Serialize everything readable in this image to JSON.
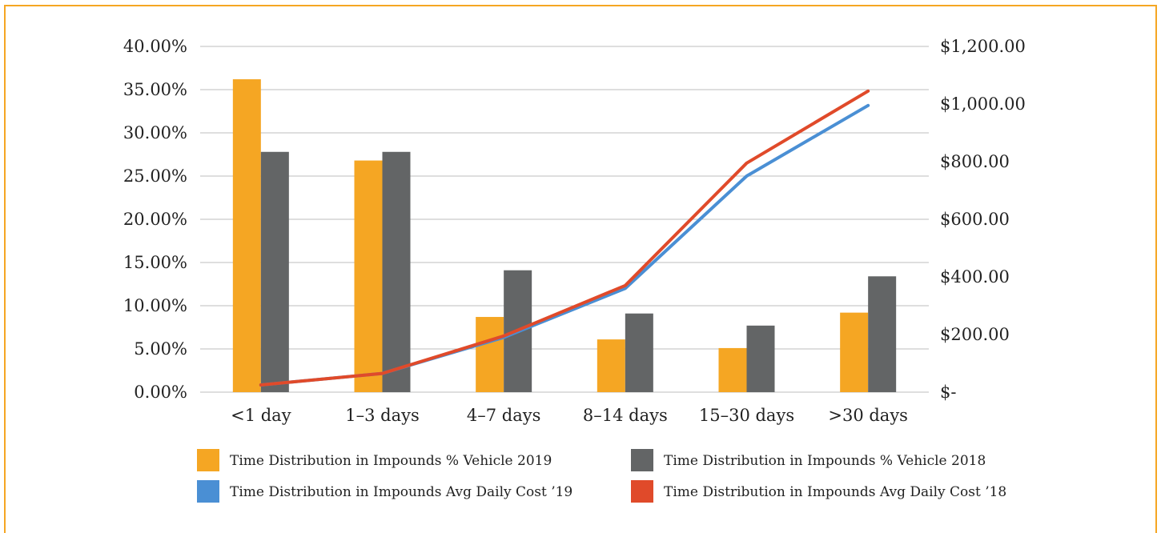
{
  "chart_data": {
    "type": "bar",
    "categories": [
      "<1 day",
      "1-3 days",
      "4-7 days",
      "8-14 days",
      "15-30 days",
      ">30 days"
    ],
    "series": [
      {
        "name": "Time Distribution in Impounds % Vehicle 2019",
        "kind": "bar",
        "axis": "left",
        "color": "#F5A623",
        "values": [
          36.2,
          26.8,
          8.7,
          6.1,
          5.1,
          9.2
        ]
      },
      {
        "name": "Time Distribution in Impounds % Vehicle 2018",
        "kind": "bar",
        "axis": "left",
        "color": "#636566",
        "values": [
          27.8,
          27.8,
          14.1,
          9.1,
          7.7,
          13.4
        ]
      },
      {
        "name": "Time Distribution in Impounds Avg Daily Cost ’19",
        "kind": "line",
        "axis": "right",
        "color": "#4A8FD4",
        "values": [
          25,
          65,
          190,
          360,
          750,
          995
        ]
      },
      {
        "name": "Time Distribution in Impounds Avg Daily Cost ’18",
        "kind": "line",
        "axis": "right",
        "color": "#E04A2A",
        "values": [
          25,
          65,
          195,
          370,
          795,
          1045
        ]
      }
    ],
    "y_left": {
      "range": [
        0,
        40
      ],
      "ticks": [
        0,
        5,
        10,
        15,
        20,
        25,
        30,
        35,
        40
      ],
      "tick_labels": [
        "0.00%",
        "5.00%",
        "10.00%",
        "15.00%",
        "20.00%",
        "25.00%",
        "30.00%",
        "35.00%",
        "40.00%"
      ]
    },
    "y_right": {
      "range": [
        0,
        1200
      ],
      "ticks": [
        0,
        200,
        400,
        600,
        800,
        1000,
        1200
      ],
      "tick_labels": [
        "$-",
        "$200.00",
        "$400.00",
        "$600.00",
        "$800.00",
        "$1,000.00",
        "$1,200.00"
      ]
    },
    "x_tick_labels": [
      "<1 day",
      "1–3 days",
      "4–7 days",
      "8–14 days",
      "15–30 days",
      ">30 days"
    ],
    "grid": true,
    "legend_position": "bottom",
    "frame_color": "#F5A623"
  }
}
